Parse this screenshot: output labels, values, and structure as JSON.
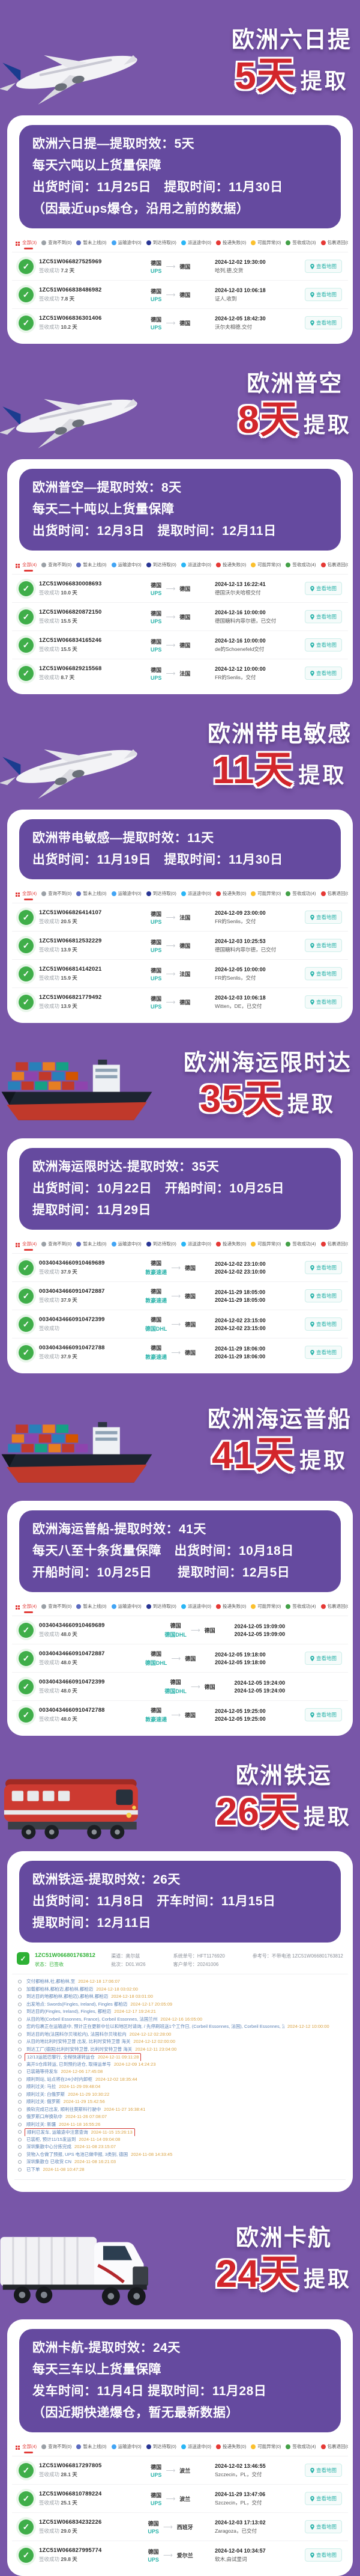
{
  "theme": {
    "background": "#7856A8",
    "card": "#FFFFFF",
    "info_box": "#654A9F",
    "accent_red": "#D3262B",
    "teal": "#2AB3AA",
    "green": "#3FAE49",
    "event_blue": "#5C82B5",
    "time_orange": "#D9A243"
  },
  "labels": {
    "pickup_suffix": "提取",
    "status_success": "签收成功",
    "map_button": "查看地图"
  },
  "filters": [
    {
      "label": "全部",
      "color": "#e23c39",
      "kind": "grid"
    },
    {
      "label": "查询不到",
      "color": "#9aa0a6",
      "kind": "dot"
    },
    {
      "label": "暂未上线",
      "color": "#5c6bc0",
      "kind": "dot"
    },
    {
      "label": "运输途中",
      "color": "#42a5f5",
      "kind": "dot"
    },
    {
      "label": "到达待取",
      "color": "#283593",
      "kind": "dot"
    },
    {
      "label": "派送途中",
      "color": "#29b6f6",
      "kind": "dot"
    },
    {
      "label": "投递失败",
      "color": "#e53935",
      "kind": "dot"
    },
    {
      "label": "可能异常",
      "color": "#fbc02d",
      "kind": "dot"
    },
    {
      "label": "签收成功",
      "color": "#43a047",
      "kind": "dot"
    },
    {
      "label": "包裹退回",
      "color": "#e53935",
      "kind": "dot"
    },
    {
      "label": "运输过久",
      "color": "#fb8c00",
      "kind": "dot"
    }
  ],
  "sections": [
    {
      "type": "list",
      "vehicle": "plane",
      "tall": false,
      "title": "欧洲六日提",
      "days": "5天",
      "info": [
        "欧洲六日提—提取时效：5天",
        "每天六吨以上货量保障",
        "出货时间：11月25日　提取时间：11月30日",
        "（因最近ups爆仓，沿用之前的数据）"
      ],
      "all_count": 3,
      "success_count": 3,
      "rows": [
        {
          "num": "1ZC51W066827525969",
          "days": "7.2 天",
          "origin": "德国",
          "carrier": "UPS",
          "dest": "德国",
          "time": "2024-12-02 19:30:00",
          "event": "哈列,德,交货",
          "map": true
        },
        {
          "num": "1ZC51W066838486982",
          "days": "7.8 天",
          "origin": "德国",
          "carrier": "UPS",
          "dest": "德国",
          "time": "2024-12-03 10:06:18",
          "event": "证人,收到",
          "map": true
        },
        {
          "num": "1ZC51W066836301406",
          "days": "10.2 天",
          "origin": "德国",
          "carrier": "UPS",
          "dest": "德国",
          "time": "2024-12-05 18:42:30",
          "event": "沃尔夫相德,交付",
          "map": true
        }
      ]
    },
    {
      "type": "list",
      "vehicle": "plane",
      "tall": false,
      "title": "欧洲普空",
      "days": "8天",
      "info": [
        "欧洲普空—提取时效：8天",
        "每天二十吨以上货量保障",
        "出货时间：12月3日　提取时间：12月11日"
      ],
      "all_count": 4,
      "success_count": 4,
      "rows": [
        {
          "num": "1ZC51W066830008693",
          "days": "10.0 天",
          "origin": "德国",
          "carrier": "UPS",
          "dest": "德国",
          "time": "2024-12-13 16:22:41",
          "event": "德国沃尔夫哈根交付",
          "map": true
        },
        {
          "num": "1ZC51W066820872150",
          "days": "15.5 天",
          "origin": "德国",
          "carrier": "UPS",
          "dest": "德国",
          "time": "2024-12-16 10:00:00",
          "event": "德国糖料内菲尔德，已交付",
          "map": true
        },
        {
          "num": "1ZC51W066834165246",
          "days": "15.5 天",
          "origin": "德国",
          "carrier": "UPS",
          "dest": "德国",
          "time": "2024-12-16 10:00:00",
          "event": "de的Schoenefeld交付",
          "map": true
        },
        {
          "num": "1ZC51W066829215568",
          "days": "8.7 天",
          "origin": "德国",
          "carrier": "UPS",
          "dest": "法国",
          "time": "2024-12-12 10:00:00",
          "event": "FR的Senlis，交付",
          "map": true
        }
      ]
    },
    {
      "type": "list",
      "vehicle": "plane",
      "tall": false,
      "title": "欧洲带电敏感",
      "days": "11天",
      "info": [
        "欧洲带电敏感—提取时效：11天",
        "出货时间：11月19日　提取时间：11月30日"
      ],
      "all_count": 4,
      "success_count": 4,
      "rows": [
        {
          "num": "1ZC51W066826414107",
          "days": "20.5 天",
          "origin": "德国",
          "carrier": "UPS",
          "dest": "法国",
          "time": "2024-12-09 23:00:00",
          "event": "FR的Senlis，交付",
          "map": true
        },
        {
          "num": "1ZC51W066812532229",
          "days": "13.9 天",
          "origin": "德国",
          "carrier": "UPS",
          "dest": "德国",
          "time": "2024-12-03 10:25:53",
          "event": "德国糖料内菲尔德，已交付",
          "map": true
        },
        {
          "num": "1ZC51W066814142021",
          "days": "15.9 天",
          "origin": "德国",
          "carrier": "UPS",
          "dest": "法国",
          "time": "2024-12-05 10:00:00",
          "event": "FR的Senlis，交付",
          "map": true
        },
        {
          "num": "1ZC51W066821779492",
          "days": "13.9 天",
          "origin": "德国",
          "carrier": "UPS",
          "dest": "德国",
          "time": "2024-12-03 10:06:18",
          "event": "Witten，DE，已交付",
          "map": true
        }
      ]
    },
    {
      "type": "list",
      "vehicle": "ship",
      "tall": false,
      "title": "欧洲海运限时达",
      "days": "35天",
      "info": [
        "欧洲海运限时达-提取时效：35天",
        "出货时间：10月22日　开船时间：10月25日",
        "提取时间：11月29日"
      ],
      "all_count": 4,
      "success_count": 4,
      "rows": [
        {
          "num": "00340434660910469689",
          "days": "37.9 天",
          "origin": "德国",
          "carrier": "敦豪速递",
          "dest": "德国",
          "time": "2024-12-02 23:10:00",
          "time2": "2024-12-02 23:10:00",
          "map": true
        },
        {
          "num": "00340434660910472887",
          "days": "37.9 天",
          "origin": "德国",
          "carrier": "敦豪速递",
          "dest": "德国",
          "time": "2024-11-29 18:05:00",
          "time2": "2024-11-29 18:05:00",
          "map": true
        },
        {
          "num": "00340434660910472399",
          "days": "",
          "origin": "德国",
          "carrier": "德国DHL",
          "dest": "德国",
          "time": "2024-12-02 23:15:00",
          "time2": "2024-12-02 23:15:00",
          "map": true
        },
        {
          "num": "00340434660910472788",
          "days": "37.9 天",
          "origin": "德国",
          "carrier": "敦豪速递",
          "dest": "德国",
          "time": "2024-11-29 18:06:00",
          "time2": "2024-11-29 18:06:00",
          "map": true
        }
      ]
    },
    {
      "type": "list",
      "vehicle": "ship",
      "tall": true,
      "title": "欧洲海运普船",
      "days": "41天",
      "info": [
        "欧洲海运普船-提取时效：41天",
        "每天八至十条货量保障　出货时间：10月18日",
        "开船时间：10月25日　　提取时间：12月5日"
      ],
      "all_count": 4,
      "success_count": 4,
      "rows": [
        {
          "num": "00340434660910469689",
          "days": "48.0 天",
          "origin": "德国",
          "carrier": "德国DHL",
          "dest": "德国",
          "time": "2024-12-05 19:09:00",
          "time2": "2024-12-05 19:09:00",
          "map": false
        },
        {
          "num": "00340434660910472887",
          "days": "48.0 天",
          "origin": "德国",
          "carrier": "德国DHL",
          "dest": "德国",
          "time": "2024-12-05 19:18:00",
          "time2": "2024-12-05 19:18:00",
          "map": true
        },
        {
          "num": "00340434660910472399",
          "days": "48.0 天",
          "origin": "德国",
          "carrier": "德国DHL",
          "dest": "德国",
          "time": "2024-12-05 19:24:00",
          "time2": "2024-12-05 19:24:00",
          "map": false
        },
        {
          "num": "00340434660910472788",
          "days": "48.0 天",
          "origin": "德国",
          "carrier": "敦豪速递",
          "dest": "德国",
          "time": "2024-12-05 19:25:00",
          "time2": "2024-12-05 19:25:00",
          "map": true
        }
      ]
    },
    {
      "type": "detail",
      "vehicle": "train",
      "tall": false,
      "title": "欧洲铁运",
      "days": "26天",
      "info": [
        "欧洲铁运-提取时效：26天",
        "出货时间：11月8日　开车时间：11月15日",
        "提取时间：12月11日"
      ],
      "header": {
        "number": "1ZC51W066801763812",
        "status": "状态：已签收",
        "meta1": [
          "渠道：奥尔兹",
          "批次：D01.W26"
        ],
        "meta2": [
          "系统单号：HFT1176920",
          "客户单号：20241006"
        ],
        "meta3": "参考号：不带电池 1ZC51W066801763812"
      },
      "events": [
        {
          "text": "交付都柏林,社,都柏林,至",
          "time": "2024-12-18 17:06:07",
          "boxed": false
        },
        {
          "text": "加载都柏林,都柏迈,都柏林,都柏迈",
          "time": "2024-12-18 03:02:00",
          "boxed": false
        },
        {
          "text": "到达目的地都柏林,都柏迈),都柏林,都柏迈",
          "time": "2024-12-18 03:01:00",
          "boxed": false
        },
        {
          "text": "出发地点: Swords(Fingles, Ireland), Fingles 都柏迈",
          "time": "2024-12-17 20:05:09",
          "boxed": false
        },
        {
          "text": "到达目的(Fingles, Ireland), Fingles, 都柏迈",
          "time": "2024-12-17 19:24:21",
          "boxed": false
        },
        {
          "text": "从目的地(Corbeil Essonnes, France), Corbeil Essonnes, 法国兰州",
          "time": "2024-12-16 16:05:00",
          "boxed": false
        },
        {
          "text": "您的包裹正在运输途中, 预计正在更新中位以和地区时请询, / 先停刷班送1个工作日, (Corbeil Essonnes, 法国), Corbeil Essonnes, 法国",
          "time": "2024-12-12 10:00:00",
          "boxed": false
        },
        {
          "text": "到达目的地(法国科尔贝埃松内), 法国科尔贝埃松内",
          "time": "2024-12-12 02:28:00",
          "boxed": false
        },
        {
          "text": "从目的地比利时安特卫普 出发, 比利时安特卫普 海关",
          "time": "2024-12-12 02:00:00",
          "boxed": false
        },
        {
          "text": "到达工厂(德国)比利时安特卫普, 比利时安特卫普 海关",
          "time": "2024-12-11 23:04:00",
          "boxed": false
        },
        {
          "text": "12/13运抵巴黎行, 全程快递转运仓",
          "time": "2024-12-11 09:11:28",
          "boxed": true
        },
        {
          "text": "离开S仓库转运, 已到预约进仓, 取得运单号",
          "time": "2024-12-09 14:24:23",
          "boxed": false
        },
        {
          "text": "已装箱等待发车",
          "time": "2024-12-06 17:45:08",
          "boxed": false
        },
        {
          "text": "顺利到站, 站点将在24小时内卸柜",
          "time": "2024-12-02 18:35:44",
          "boxed": false
        },
        {
          "text": "顺利过关: 马拉",
          "time": "2024-11-29 09:48:04",
          "boxed": false
        },
        {
          "text": "顺利过关: 白俄罗斯",
          "time": "2024-11-29 10:30:22",
          "boxed": false
        },
        {
          "text": "顺利过关: 俄罗斯",
          "time": "2024-11-29 15:42:56",
          "boxed": false
        },
        {
          "text": "换轨完成已出发, 顺利往莫斯科行驶中",
          "time": "2024-11-27 16:38:41",
          "boxed": false
        },
        {
          "text": "俄罗斯口岸换轨中",
          "time": "2024-11-26 07:08:07",
          "boxed": false
        },
        {
          "text": "顺利过关: 新疆",
          "time": "2024-11-18 16:55:26",
          "boxed": false
        },
        {
          "text": "顺利已发车, 运输途中注意查询",
          "time": "2024-11-15 15:26:13",
          "boxed": true
        },
        {
          "text": "已装柜, 预计11/15发运到",
          "time": "2024-11-14 09:04:08",
          "boxed": false
        },
        {
          "text": "深圳集散中心分拣完成",
          "time": "2024-11-08 23:15:07",
          "boxed": false
        },
        {
          "text": "货物入仓做了预报, UPS 电池已做申报, 3类别, 德国",
          "time": "2024-11-08 14:33:45",
          "boxed": false
        },
        {
          "text": "深圳集散仓 已收货 CN",
          "time": "2024-11-08 16:21:03",
          "boxed": false
        },
        {
          "text": "已下单",
          "time": "2024-11-08 10:47:28",
          "boxed": false
        }
      ]
    },
    {
      "type": "list",
      "vehicle": "truck",
      "tall": true,
      "title": "欧洲卡航",
      "days": "24天",
      "info": [
        "欧洲卡航-提取时效：24天",
        "每天三车以上货量保障",
        "发车时间：11月4日 提取时间：11月28日",
        "（因近期快递爆仓，暂无最新数据）"
      ],
      "all_count": 4,
      "success_count": 4,
      "rows": [
        {
          "num": "1ZC51W066817297805",
          "days": "28.1 天",
          "origin": "德国",
          "carrier": "UPS",
          "dest": "波兰",
          "time": "2024-12-02 13:46:55",
          "event": "Szczecin，PL，交付",
          "map": true
        },
        {
          "num": "1ZC51W066810789224",
          "days": "25.1 天",
          "origin": "德国",
          "carrier": "UPS",
          "dest": "波兰",
          "time": "2024-11-29 13:47:06",
          "event": "Szczecin，PL，交付",
          "map": true
        },
        {
          "num": "1ZC51W066834232226",
          "days": "29.0 天",
          "origin": "德国",
          "carrier": "UPS",
          "dest": "西班牙",
          "time": "2024-12-03 17:13:02",
          "event": "Zaragoza，已交付",
          "map": true
        },
        {
          "num": "1ZC51W066827995774",
          "days": "29.8 天",
          "origin": "德国",
          "carrier": "UPS",
          "dest": "爱尔兰",
          "time": "2024-12-04 10:34:57",
          "event": "软木,由试里词",
          "map": true
        }
      ]
    }
  ]
}
